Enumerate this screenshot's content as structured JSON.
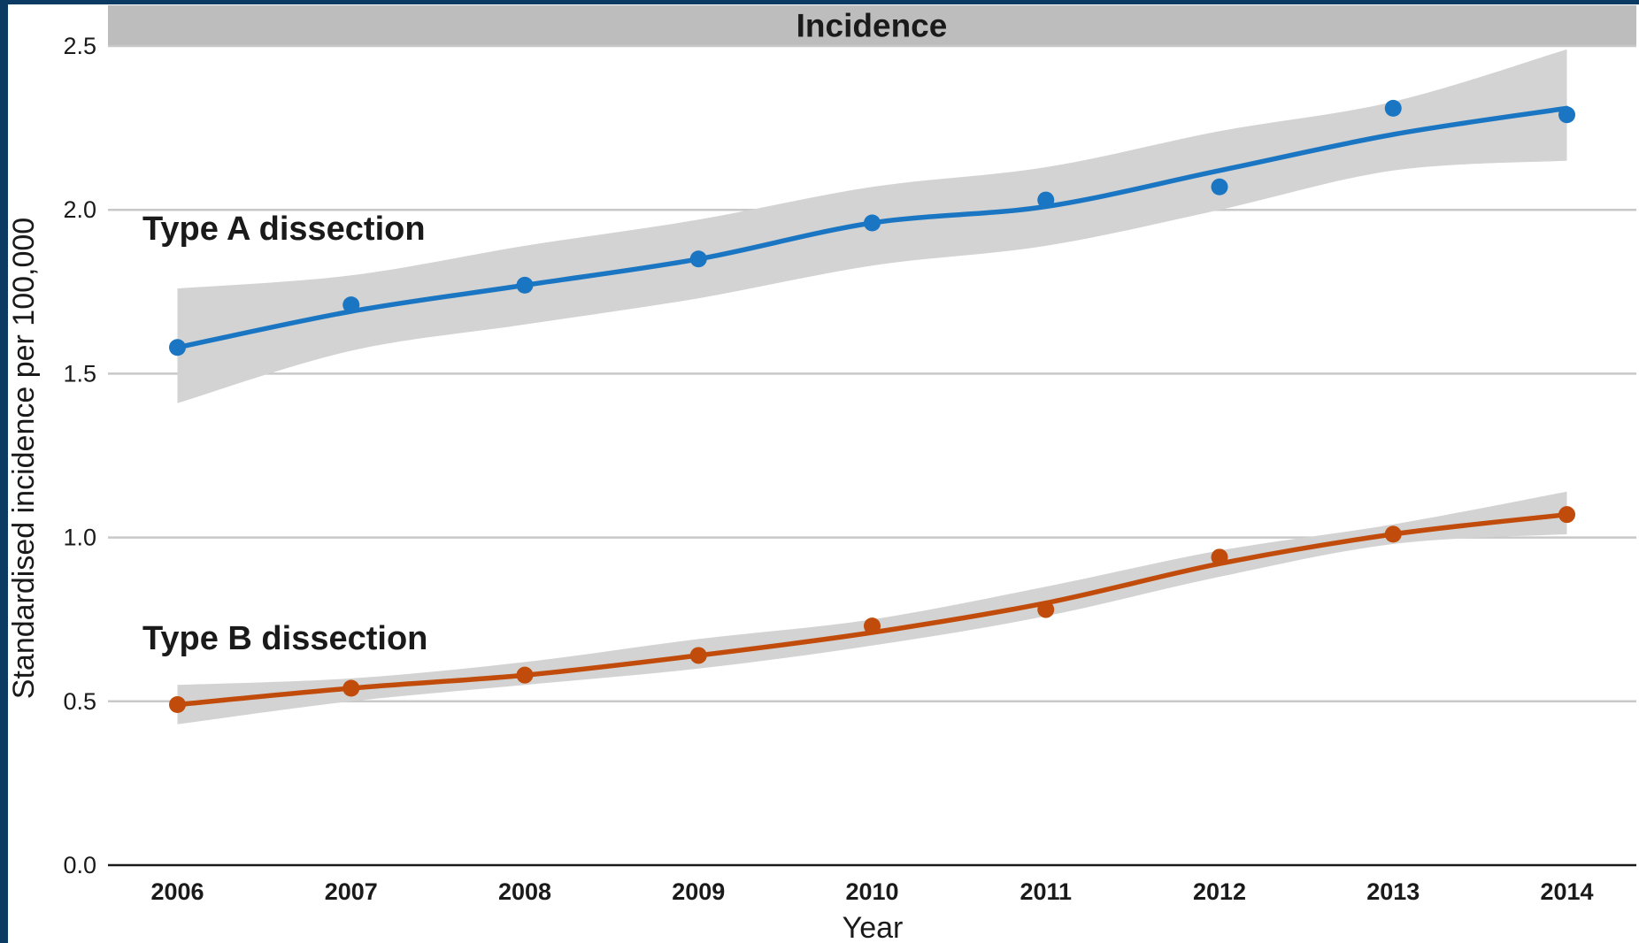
{
  "chart_data": {
    "type": "line",
    "title": "Incidence",
    "xlabel": "Year",
    "ylabel": "Standardised incidence per 100,000",
    "xlim": [
      2005.6,
      2014.4
    ],
    "ylim": [
      0,
      2.5
    ],
    "x_ticks": [
      "2006",
      "2007",
      "2008",
      "2009",
      "2010",
      "2011",
      "2012",
      "2013",
      "2014"
    ],
    "y_ticks": [
      "0.0",
      "0.5",
      "1.0",
      "1.5",
      "2.0",
      "2.5"
    ],
    "grid": "horizontal",
    "series": [
      {
        "name": "Type A dissection",
        "color": "#1a76c2",
        "x": [
          2006,
          2007,
          2008,
          2009,
          2010,
          2011,
          2012,
          2013,
          2014
        ],
        "points": [
          1.58,
          1.71,
          1.77,
          1.85,
          1.96,
          2.03,
          2.07,
          2.31,
          2.29
        ],
        "smooth": [
          1.58,
          1.69,
          1.77,
          1.85,
          1.96,
          2.01,
          2.12,
          2.23,
          2.31
        ],
        "ci_lower": [
          1.41,
          1.57,
          1.65,
          1.73,
          1.83,
          1.89,
          2.0,
          2.12,
          2.15
        ],
        "ci_upper": [
          1.76,
          1.8,
          1.89,
          1.97,
          2.07,
          2.13,
          2.24,
          2.33,
          2.49
        ],
        "label_y": 2.0
      },
      {
        "name": "Type B dissection",
        "color": "#c04b0a",
        "x": [
          2006,
          2007,
          2008,
          2009,
          2010,
          2011,
          2012,
          2013,
          2014
        ],
        "points": [
          0.49,
          0.54,
          0.58,
          0.64,
          0.73,
          0.78,
          0.94,
          1.01,
          1.07
        ],
        "smooth": [
          0.49,
          0.54,
          0.58,
          0.64,
          0.71,
          0.8,
          0.92,
          1.01,
          1.07
        ],
        "ci_lower": [
          0.43,
          0.5,
          0.55,
          0.6,
          0.67,
          0.76,
          0.88,
          0.98,
          1.01
        ],
        "ci_upper": [
          0.55,
          0.57,
          0.62,
          0.69,
          0.75,
          0.85,
          0.96,
          1.04,
          1.14
        ],
        "label_y": 0.75
      }
    ]
  }
}
